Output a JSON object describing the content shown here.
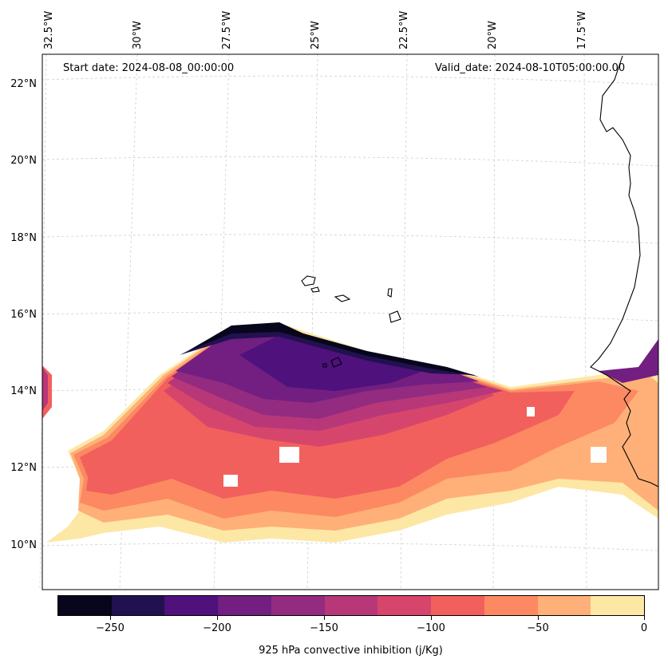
{
  "header": {
    "start_date": "Start date: 2024-08-08_00:00:00",
    "valid_date": "Valid_date: 2024-08-10T05:00:00.00"
  },
  "axes": {
    "lon_labels": [
      "32.5°W",
      "30°W",
      "27.5°W",
      "25°W",
      "22.5°W",
      "20°W",
      "17.5°W"
    ],
    "lat_labels": [
      "22°N",
      "20°N",
      "18°N",
      "16°N",
      "14°N",
      "12°N",
      "10°N"
    ]
  },
  "colorbar": {
    "title": "925 hPa convective inhibition (j/Kg)",
    "tick_labels": [
      "−250",
      "−200",
      "−150",
      "−100",
      "−50",
      "0"
    ],
    "colors": [
      "#07061c",
      "#221150",
      "#4f117b",
      "#721f81",
      "#932b80",
      "#b73779",
      "#d6456c",
      "#f1605d",
      "#fc8961",
      "#feb078",
      "#fde7a5"
    ]
  }
}
